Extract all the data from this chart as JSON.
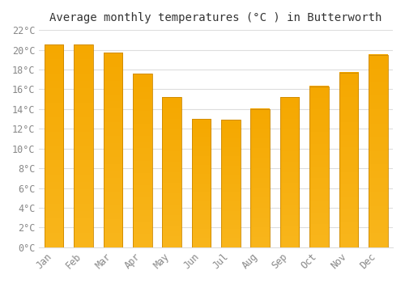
{
  "title": "Average monthly temperatures (°C ) in Butterworth",
  "months": [
    "Jan",
    "Feb",
    "Mar",
    "Apr",
    "May",
    "Jun",
    "Jul",
    "Aug",
    "Sep",
    "Oct",
    "Nov",
    "Dec"
  ],
  "values": [
    20.5,
    20.5,
    19.7,
    17.6,
    15.2,
    13.0,
    12.9,
    14.0,
    15.2,
    16.3,
    17.7,
    19.5
  ],
  "bar_color": "#FFA500",
  "bar_edge_color": "#CC8800",
  "background_color": "#FFFFFF",
  "grid_color": "#DDDDDD",
  "ylim": [
    0,
    22
  ],
  "ytick_step": 2,
  "title_fontsize": 10,
  "tick_fontsize": 8.5,
  "tick_color": "#888888",
  "font_family": "monospace"
}
